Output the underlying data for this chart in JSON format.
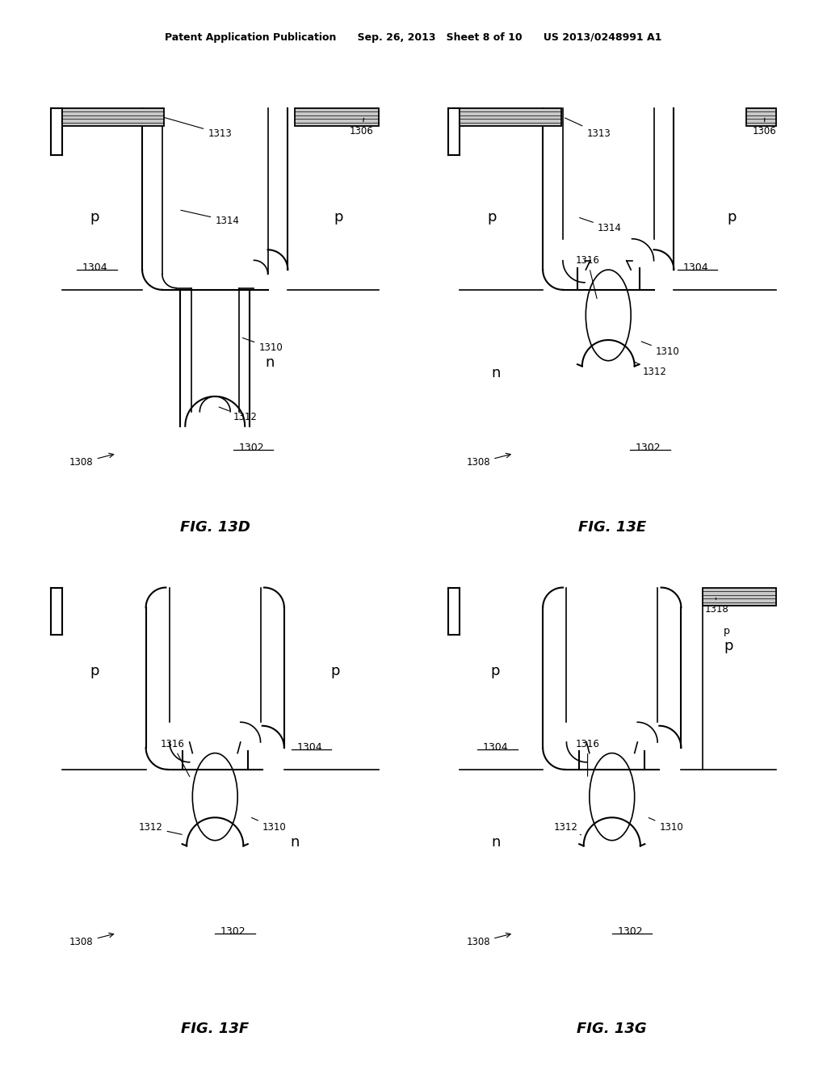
{
  "bg": "#ffffff",
  "lc": "#000000",
  "header": "Patent Application Publication      Sep. 26, 2013   Sheet 8 of 10      US 2013/0248991 A1",
  "figs": [
    "FIG. 13D",
    "FIG. 13E",
    "FIG. 13F",
    "FIG. 13G"
  ]
}
